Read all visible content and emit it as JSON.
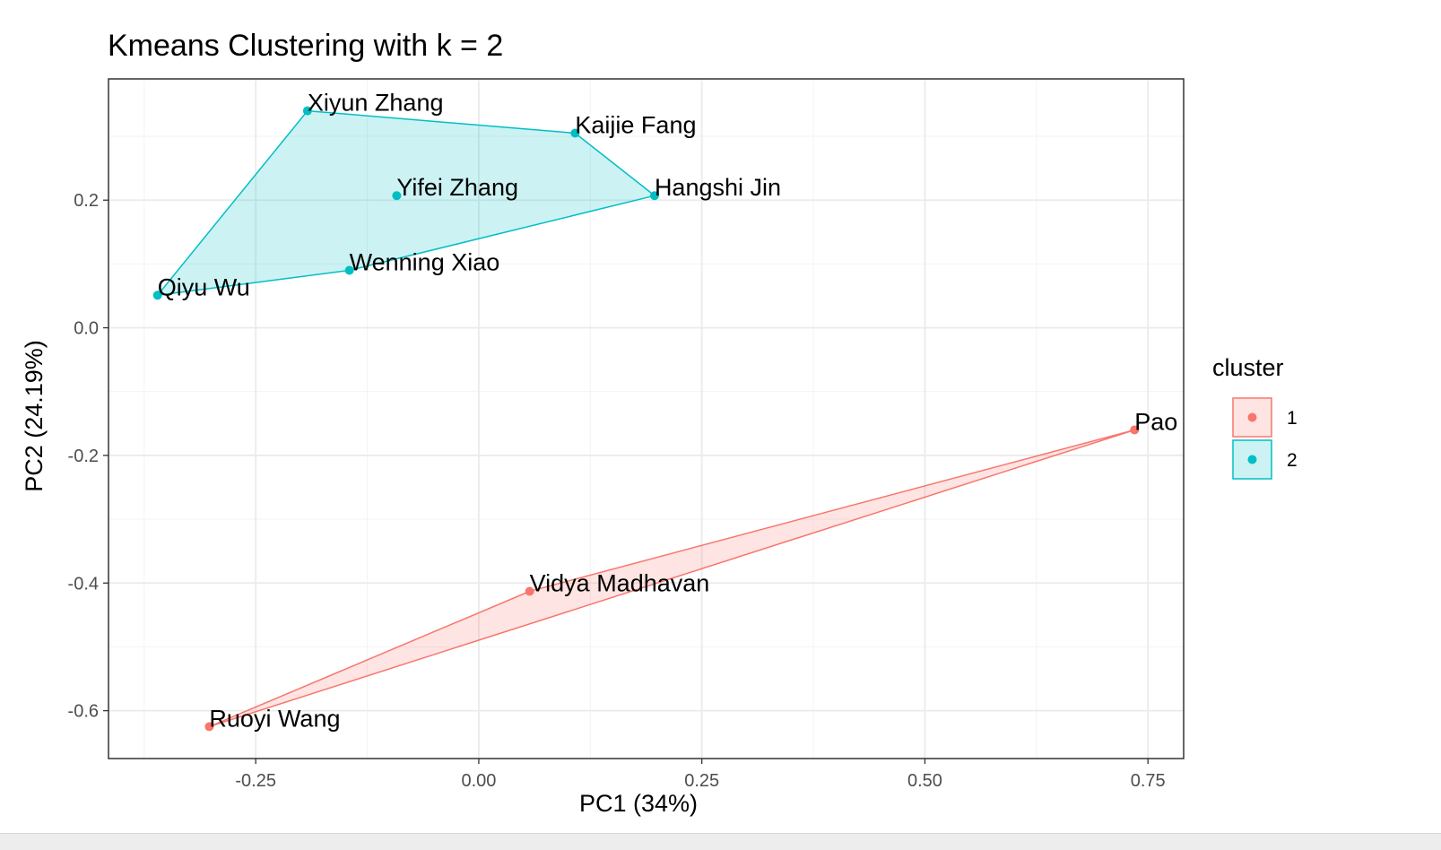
{
  "chart_data": {
    "type": "scatter",
    "title": "Kmeans Clustering with k = 2",
    "xlabel": "PC1 (34%)",
    "ylabel": "PC2 (24.19%)",
    "xlim": [
      -0.415,
      0.79
    ],
    "ylim": [
      -0.675,
      0.39
    ],
    "x_ticks": [
      -0.25,
      0.0,
      0.25,
      0.5,
      0.75
    ],
    "x_tick_labels": [
      "-0.25",
      "0.00",
      "0.25",
      "0.50",
      "0.75"
    ],
    "y_ticks": [
      -0.6,
      -0.4,
      -0.2,
      0.0,
      0.2
    ],
    "y_tick_labels": [
      "-0.6",
      "-0.4",
      "-0.2",
      "0.0",
      "0.2"
    ],
    "grid": true,
    "legend": {
      "title": "cluster",
      "position": "right",
      "entries": [
        {
          "label": "1",
          "color": "#F8766D"
        },
        {
          "label": "2",
          "color": "#00BFC4"
        }
      ]
    },
    "series": [
      {
        "name": "1",
        "color": "#F8766D",
        "points": [
          {
            "label": "Pao",
            "x": 0.735,
            "y": -0.16
          },
          {
            "label": "Vidya Madhavan",
            "x": 0.057,
            "y": -0.413
          },
          {
            "label": "Ruoyi Wang",
            "x": -0.302,
            "y": -0.625
          }
        ],
        "hull": [
          0,
          1,
          2
        ]
      },
      {
        "name": "2",
        "color": "#00BFC4",
        "points": [
          {
            "label": "Xiyun Zhang",
            "x": -0.192,
            "y": 0.34
          },
          {
            "label": "Kaijie Fang",
            "x": 0.108,
            "y": 0.305
          },
          {
            "label": "Yifei Zhang",
            "x": -0.092,
            "y": 0.207
          },
          {
            "label": "Hangshi Jin",
            "x": 0.197,
            "y": 0.207
          },
          {
            "label": "Wenning Xiao",
            "x": -0.145,
            "y": 0.09
          },
          {
            "label": "Qiyu Wu",
            "x": -0.36,
            "y": 0.051
          }
        ],
        "hull": [
          0,
          1,
          3,
          4,
          5
        ]
      }
    ]
  }
}
